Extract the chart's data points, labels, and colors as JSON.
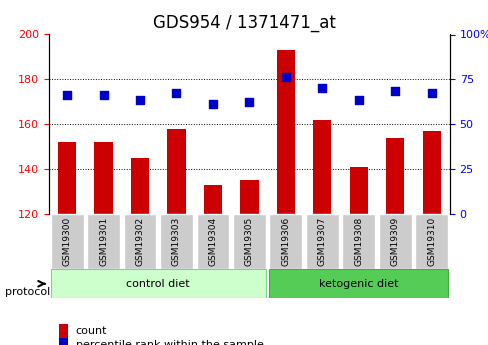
{
  "title": "GDS954 / 1371471_at",
  "samples": [
    "GSM19300",
    "GSM19301",
    "GSM19302",
    "GSM19303",
    "GSM19304",
    "GSM19305",
    "GSM19306",
    "GSM19307",
    "GSM19308",
    "GSM19309",
    "GSM19310"
  ],
  "counts": [
    152,
    152,
    145,
    158,
    133,
    135,
    193,
    162,
    141,
    154,
    157
  ],
  "percentiles": [
    173,
    173,
    171,
    174,
    169,
    170,
    181,
    176,
    171,
    175,
    174
  ],
  "ylim_left": [
    120,
    200
  ],
  "ylim_right": [
    0,
    100
  ],
  "yticks_left": [
    120,
    140,
    160,
    180,
    200
  ],
  "yticks_right": [
    0,
    25,
    50,
    75,
    100
  ],
  "ytick_labels_right": [
    "0",
    "25",
    "50",
    "75",
    "100%"
  ],
  "bar_color": "#cc0000",
  "dot_color": "#0000cc",
  "grid_color": "#000000",
  "groups": [
    {
      "label": "control diet",
      "start": 0,
      "end": 5,
      "color": "#ccffcc"
    },
    {
      "label": "ketogenic diet",
      "start": 6,
      "end": 10,
      "color": "#66dd66"
    }
  ],
  "protocol_label": "protocol",
  "xlabel_bg": "#cccccc",
  "legend_count_label": "count",
  "legend_pct_label": "percentile rank within the sample",
  "title_fontsize": 12,
  "axis_label_fontsize": 9,
  "tick_fontsize": 8
}
